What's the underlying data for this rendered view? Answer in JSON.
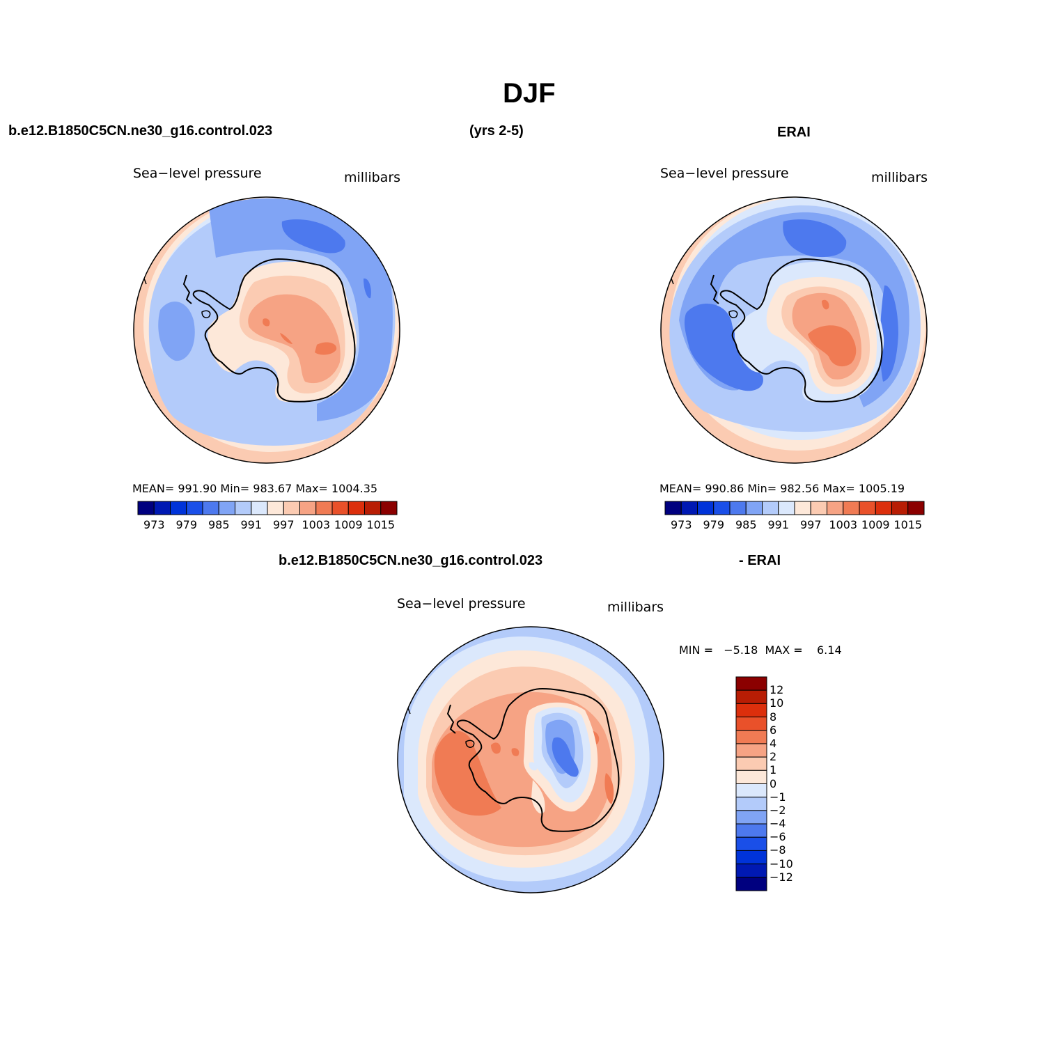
{
  "main_title": "DJF",
  "header": {
    "case_name": "b.e12.B1850C5CN.ne30_g16.control.023",
    "years": "(yrs 2-5)",
    "obs_name": "ERAI",
    "diff_case_name": "b.e12.B1850C5CN.ne30_g16.control.023",
    "diff_obs_name": "- ERAI"
  },
  "panels": [
    {
      "id": "model",
      "variable": "Sea−level pressure",
      "units": "millibars",
      "stats": "MEAN= 991.90   Min= 983.67   Max= 1004.35"
    },
    {
      "id": "obs",
      "variable": "Sea−level pressure",
      "units": "millibars",
      "stats": "MEAN= 990.86   Min= 982.56   Max= 1005.19"
    },
    {
      "id": "diff",
      "variable": "Sea−level pressure",
      "units": "millibars",
      "stats": "MIN =   −5.18  MAX =    6.14"
    }
  ],
  "colorbar_abs": {
    "colors": [
      "#00007f",
      "#0019b3",
      "#0033d9",
      "#1a4fe8",
      "#4d79ee",
      "#80a4f5",
      "#b3cbfa",
      "#dbe8fc",
      "#fde8d9",
      "#fbcbb2",
      "#f6a384",
      "#f07b54",
      "#e9512a",
      "#dc2f0c",
      "#b81d04",
      "#8b0000"
    ],
    "labels": [
      "973",
      "979",
      "985",
      "991",
      "997",
      "1003",
      "1009",
      "1015"
    ]
  },
  "colorbar_diff": {
    "colors": [
      "#8b0000",
      "#b81d04",
      "#dc2f0c",
      "#e9512a",
      "#f07b54",
      "#f6a384",
      "#fbcbb2",
      "#fde8d9",
      "#dbe8fc",
      "#b3cbfa",
      "#80a4f5",
      "#4d79ee",
      "#1a4fe8",
      "#0033d9",
      "#0019b3",
      "#00007f"
    ],
    "labels": [
      "12",
      "10",
      "8",
      "6",
      "4",
      "2",
      "1",
      "0",
      "−1",
      "−2",
      "−4",
      "−6",
      "−8",
      "−10",
      "−12"
    ]
  }
}
